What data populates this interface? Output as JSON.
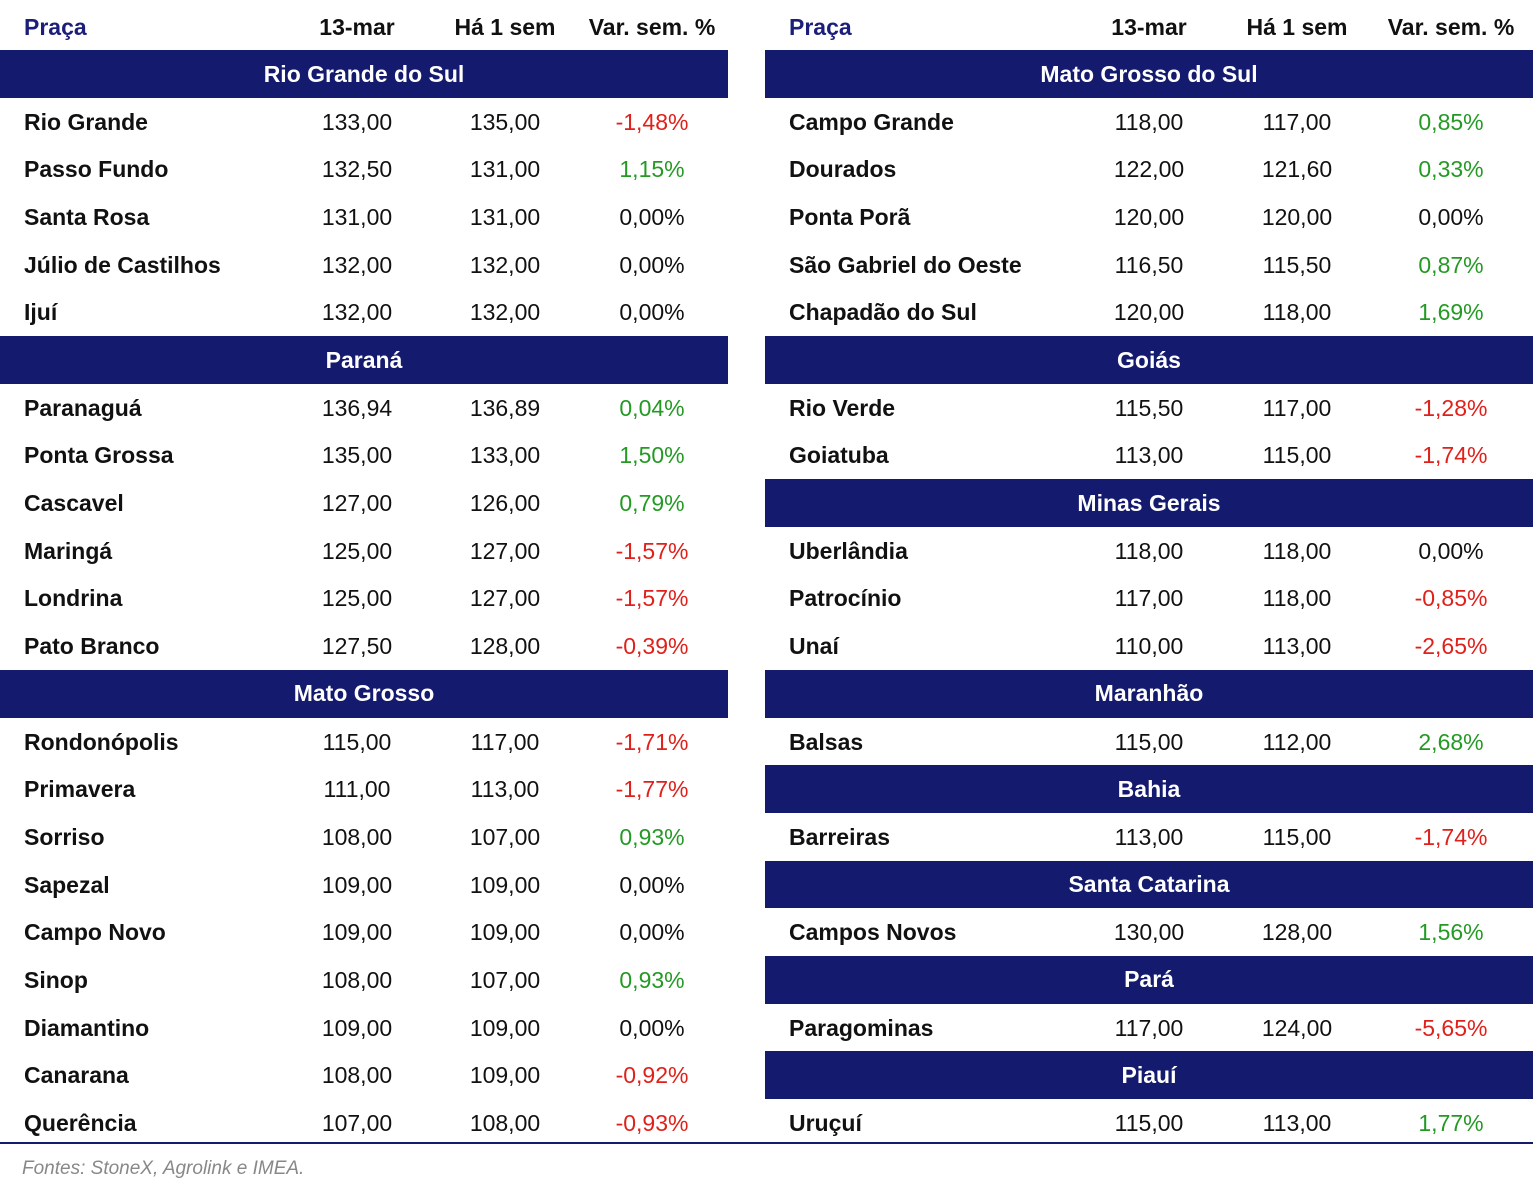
{
  "tables": [
    {
      "columns": [
        "Praça",
        "13-mar",
        "Há 1 sem",
        "Var. sem. %"
      ],
      "groups": [
        {
          "name": "Rio Grande do Sul",
          "rows": [
            [
              "Rio Grande",
              "133,00",
              "135,00",
              "-1,48%"
            ],
            [
              "Passo Fundo",
              "132,50",
              "131,00",
              "1,15%"
            ],
            [
              "Santa Rosa",
              "131,00",
              "131,00",
              "0,00%"
            ],
            [
              "Júlio de Castilhos",
              "132,00",
              "132,00",
              "0,00%"
            ],
            [
              "Ijuí",
              "132,00",
              "132,00",
              "0,00%"
            ]
          ]
        },
        {
          "name": "Paraná",
          "rows": [
            [
              "Paranaguá",
              "136,94",
              "136,89",
              "0,04%"
            ],
            [
              "Ponta Grossa",
              "135,00",
              "133,00",
              "1,50%"
            ],
            [
              "Cascavel",
              "127,00",
              "126,00",
              "0,79%"
            ],
            [
              "Maringá",
              "125,00",
              "127,00",
              "-1,57%"
            ],
            [
              "Londrina",
              "125,00",
              "127,00",
              "-1,57%"
            ],
            [
              "Pato Branco",
              "127,50",
              "128,00",
              "-0,39%"
            ]
          ]
        },
        {
          "name": "Mato Grosso",
          "rows": [
            [
              "Rondonópolis",
              "115,00",
              "117,00",
              "-1,71%"
            ],
            [
              "Primavera",
              "111,00",
              "113,00",
              "-1,77%"
            ],
            [
              "Sorriso",
              "108,00",
              "107,00",
              "0,93%"
            ],
            [
              "Sapezal",
              "109,00",
              "109,00",
              "0,00%"
            ],
            [
              "Campo Novo",
              "109,00",
              "109,00",
              "0,00%"
            ],
            [
              "Sinop",
              "108,00",
              "107,00",
              "0,93%"
            ],
            [
              "Diamantino",
              "109,00",
              "109,00",
              "0,00%"
            ],
            [
              "Canarana",
              "108,00",
              "109,00",
              "-0,92%"
            ],
            [
              "Querência",
              "107,00",
              "108,00",
              "-0,93%"
            ]
          ]
        }
      ]
    },
    {
      "columns": [
        "Praça",
        "13-mar",
        "Há 1 sem",
        "Var. sem. %"
      ],
      "groups": [
        {
          "name": "Mato Grosso do Sul",
          "rows": [
            [
              "Campo Grande",
              "118,00",
              "117,00",
              "0,85%"
            ],
            [
              "Dourados",
              "122,00",
              "121,60",
              "0,33%"
            ],
            [
              "Ponta Porã",
              "120,00",
              "120,00",
              "0,00%"
            ],
            [
              "São Gabriel do Oeste",
              "116,50",
              "115,50",
              "0,87%"
            ],
            [
              "Chapadão do Sul",
              "120,00",
              "118,00",
              "1,69%"
            ]
          ]
        },
        {
          "name": "Goiás",
          "rows": [
            [
              "Rio Verde",
              "115,50",
              "117,00",
              "-1,28%"
            ],
            [
              "Goiatuba",
              "113,00",
              "115,00",
              "-1,74%"
            ]
          ]
        },
        {
          "name": "Minas Gerais",
          "rows": [
            [
              "Uberlândia",
              "118,00",
              "118,00",
              "0,00%"
            ],
            [
              "Patrocínio",
              "117,00",
              "118,00",
              "-0,85%"
            ],
            [
              "Unaí",
              "110,00",
              "113,00",
              "-2,65%"
            ]
          ]
        },
        {
          "name": "Maranhão",
          "rows": [
            [
              "Balsas",
              "115,00",
              "112,00",
              "2,68%"
            ]
          ]
        },
        {
          "name": "Bahia",
          "rows": [
            [
              "Barreiras",
              "113,00",
              "115,00",
              "-1,74%"
            ]
          ]
        },
        {
          "name": "Santa Catarina",
          "rows": [
            [
              "Campos Novos",
              "130,00",
              "128,00",
              "1,56%"
            ]
          ]
        },
        {
          "name": "Pará",
          "rows": [
            [
              "Paragominas",
              "117,00",
              "124,00",
              "-5,65%"
            ]
          ]
        },
        {
          "name": "Piauí",
          "rows": [
            [
              "Uruçuí",
              "115,00",
              "113,00",
              "1,77%"
            ]
          ]
        }
      ]
    }
  ],
  "footer": "Fontes: StoneX, Agrolink e IMEA."
}
